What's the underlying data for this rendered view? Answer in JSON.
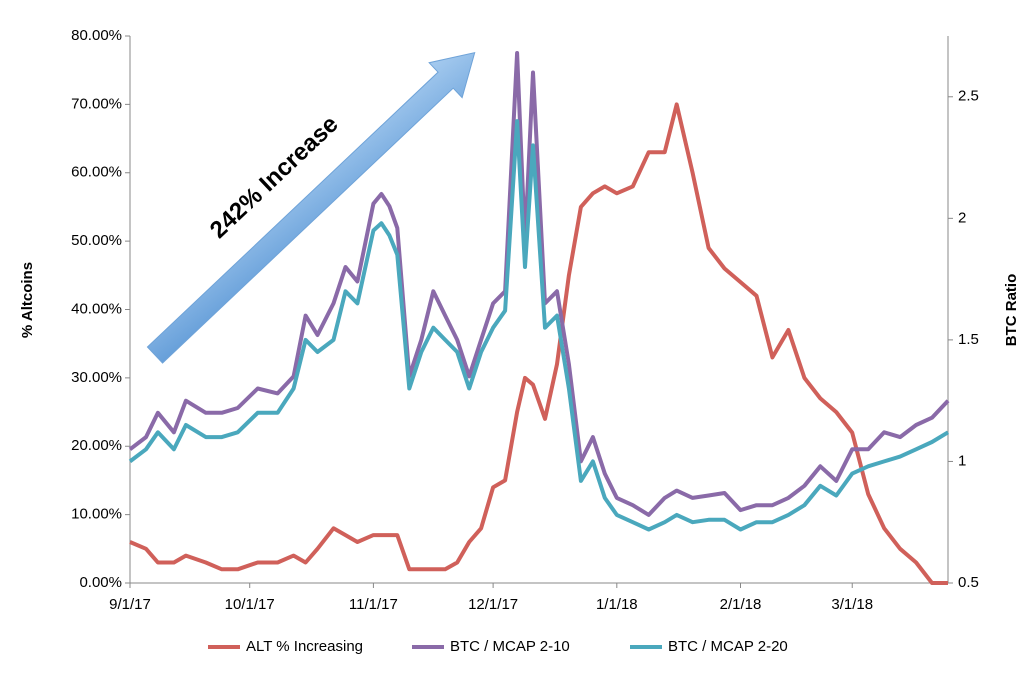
{
  "chart_data": {
    "type": "line",
    "annotation": "242% Increase",
    "ylabel": "% Altcoins",
    "y2label": "BTC Ratio",
    "x": [
      "2017-09-01",
      "2017-09-05",
      "2017-09-08",
      "2017-09-12",
      "2017-09-15",
      "2017-09-20",
      "2017-09-24",
      "2017-09-28",
      "2017-10-03",
      "2017-10-08",
      "2017-10-12",
      "2017-10-15",
      "2017-10-18",
      "2017-10-22",
      "2017-10-25",
      "2017-10-28",
      "2017-11-01",
      "2017-11-03",
      "2017-11-05",
      "2017-11-07",
      "2017-11-10",
      "2017-11-13",
      "2017-11-16",
      "2017-11-19",
      "2017-11-22",
      "2017-11-25",
      "2017-11-28",
      "2017-12-01",
      "2017-12-04",
      "2017-12-07",
      "2017-12-09",
      "2017-12-11",
      "2017-12-14",
      "2017-12-17",
      "2017-12-20",
      "2017-12-23",
      "2017-12-26",
      "2017-12-29",
      "2018-01-01",
      "2018-01-05",
      "2018-01-09",
      "2018-01-13",
      "2018-01-16",
      "2018-01-20",
      "2018-01-24",
      "2018-01-28",
      "2018-02-01",
      "2018-02-05",
      "2018-02-09",
      "2018-02-13",
      "2018-02-17",
      "2018-02-21",
      "2018-02-25",
      "2018-03-01",
      "2018-03-05",
      "2018-03-09",
      "2018-03-13",
      "2018-03-17",
      "2018-03-21",
      "2018-03-25"
    ],
    "series": [
      {
        "name": "ALT % Increasing",
        "color": "#d0605a",
        "axis": "y",
        "values": [
          6,
          5,
          3,
          3,
          4,
          3,
          2,
          2,
          3,
          3,
          4,
          3,
          5,
          8,
          7,
          6,
          7,
          7,
          7,
          7,
          2,
          2,
          2,
          2,
          3,
          6,
          8,
          14,
          15,
          25,
          30,
          29,
          24,
          32,
          45,
          55,
          57,
          58,
          57,
          58,
          63,
          63,
          70,
          60,
          49,
          46,
          44,
          42,
          33,
          37,
          30,
          27,
          25,
          22,
          13,
          8,
          5,
          3,
          0,
          0
        ]
      },
      {
        "name": "BTC / MCAP 2-10",
        "color": "#8a6aa8",
        "axis": "y2",
        "values": [
          1.05,
          1.1,
          1.2,
          1.12,
          1.25,
          1.2,
          1.2,
          1.22,
          1.3,
          1.28,
          1.35,
          1.6,
          1.52,
          1.65,
          1.8,
          1.74,
          2.06,
          2.1,
          2.05,
          1.96,
          1.35,
          1.5,
          1.7,
          1.6,
          1.5,
          1.35,
          1.5,
          1.65,
          1.7,
          2.68,
          1.9,
          2.6,
          1.65,
          1.7,
          1.4,
          1.0,
          1.1,
          0.95,
          0.85,
          0.82,
          0.78,
          0.85,
          0.88,
          0.85,
          0.86,
          0.87,
          0.8,
          0.82,
          0.82,
          0.85,
          0.9,
          0.98,
          0.92,
          1.05,
          1.05,
          1.12,
          1.1,
          1.15,
          1.18,
          1.25
        ]
      },
      {
        "name": "BTC / MCAP 2-20",
        "color": "#4aa8bd",
        "axis": "y2",
        "values": [
          1.0,
          1.05,
          1.12,
          1.05,
          1.15,
          1.1,
          1.1,
          1.12,
          1.2,
          1.2,
          1.3,
          1.5,
          1.45,
          1.5,
          1.7,
          1.65,
          1.95,
          1.98,
          1.93,
          1.85,
          1.3,
          1.45,
          1.55,
          1.5,
          1.45,
          1.3,
          1.45,
          1.55,
          1.62,
          2.4,
          1.8,
          2.3,
          1.55,
          1.6,
          1.3,
          0.92,
          1.0,
          0.85,
          0.78,
          0.75,
          0.72,
          0.75,
          0.78,
          0.75,
          0.76,
          0.76,
          0.72,
          0.75,
          0.75,
          0.78,
          0.82,
          0.9,
          0.86,
          0.95,
          0.98,
          1.0,
          1.02,
          1.05,
          1.08,
          1.12
        ]
      }
    ],
    "xlim": [
      "2017-09-01",
      "2018-03-25"
    ],
    "xticks": [
      {
        "value": "2017-09-01",
        "label": "9/1/17"
      },
      {
        "value": "2017-10-01",
        "label": "10/1/17"
      },
      {
        "value": "2017-11-01",
        "label": "11/1/17"
      },
      {
        "value": "2017-12-01",
        "label": "12/1/17"
      },
      {
        "value": "2018-01-01",
        "label": "1/1/18"
      },
      {
        "value": "2018-02-01",
        "label": "2/1/18"
      },
      {
        "value": "2018-03-01",
        "label": "3/1/18"
      }
    ],
    "ylim": [
      0,
      80
    ],
    "yticks": [
      {
        "value": 0,
        "label": "0.00%"
      },
      {
        "value": 10,
        "label": "10.00%"
      },
      {
        "value": 20,
        "label": "20.00%"
      },
      {
        "value": 30,
        "label": "30.00%"
      },
      {
        "value": 40,
        "label": "40.00%"
      },
      {
        "value": 50,
        "label": "50.00%"
      },
      {
        "value": 60,
        "label": "60.00%"
      },
      {
        "value": 70,
        "label": "70.00%"
      },
      {
        "value": 80,
        "label": "80.00%"
      }
    ],
    "y2lim": [
      0.5,
      2.75
    ],
    "y2ticks": [
      0.5,
      1,
      1.5,
      2,
      2.5
    ],
    "legend": "bottom"
  }
}
